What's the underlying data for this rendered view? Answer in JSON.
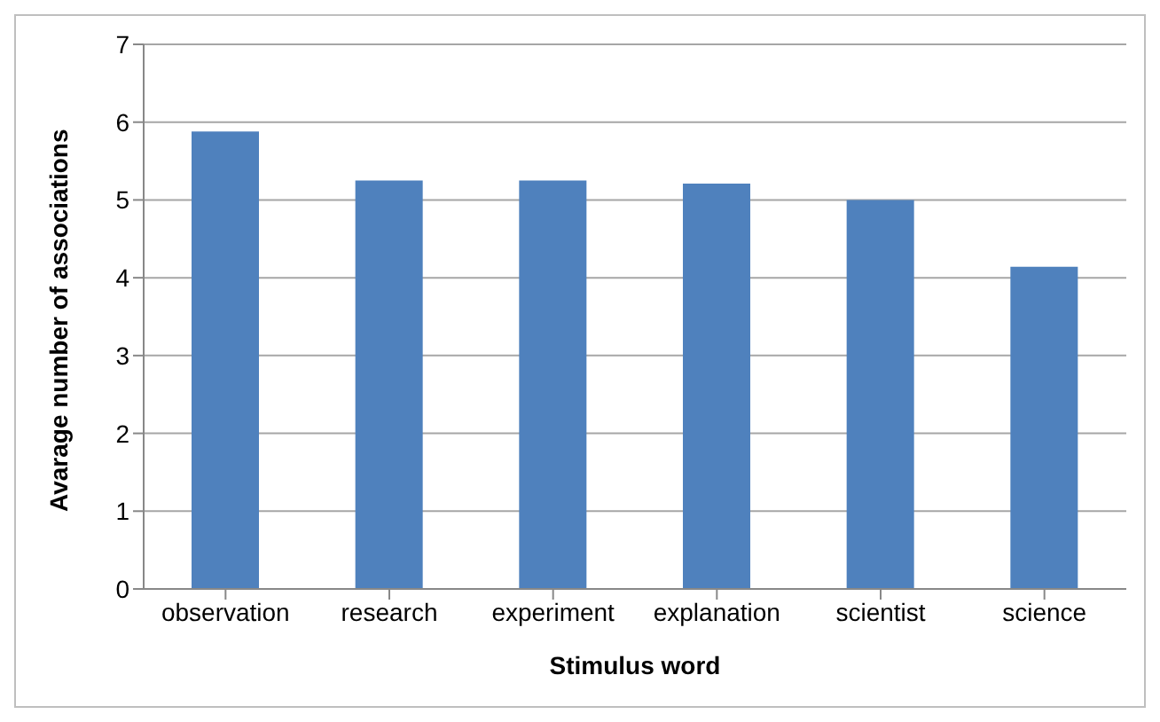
{
  "chart_data": {
    "type": "bar",
    "xlabel": "Stimulus word",
    "ylabel": "Avarage number of associations",
    "categories": [
      "observation",
      "research",
      "experiment",
      "explanation",
      "scientist",
      "science"
    ],
    "values": [
      5.88,
      5.25,
      5.25,
      5.21,
      5.0,
      4.14
    ],
    "color": "#4f81bd",
    "ylim": [
      0,
      7
    ],
    "yticks": [
      0,
      1,
      2,
      3,
      4,
      5,
      6,
      7
    ],
    "grid": "y",
    "legend": false
  }
}
